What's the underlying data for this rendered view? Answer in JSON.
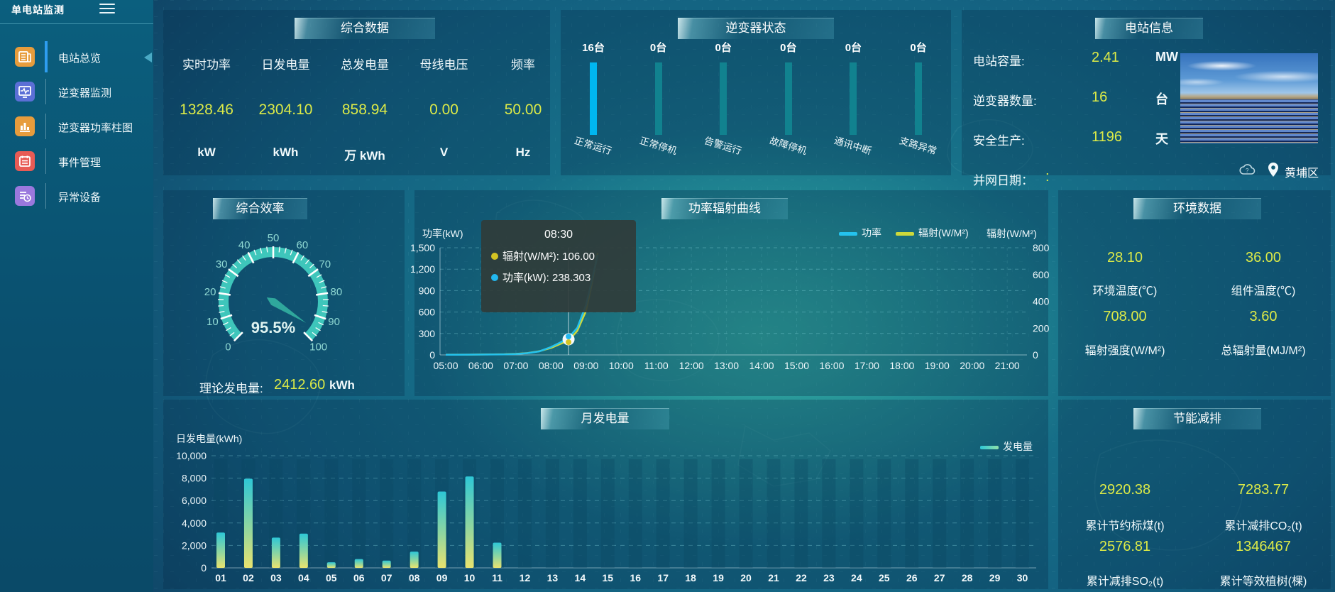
{
  "app": {
    "title": "单电站监测"
  },
  "sidebar": {
    "items": [
      {
        "label": "电站总览",
        "icon": "overview-icon",
        "color": "#e79c3c",
        "active": true
      },
      {
        "label": "逆变器监测",
        "icon": "inverter-monitor-icon",
        "color": "#5b6fd6",
        "active": false
      },
      {
        "label": "逆变器功率柱图",
        "icon": "power-bars-icon",
        "color": "#e79c3c",
        "active": false
      },
      {
        "label": "事件管理",
        "icon": "event-icon",
        "color": "#e85b55",
        "active": false
      },
      {
        "label": "异常设备",
        "icon": "abnormal-device-icon",
        "color": "#9a78dd",
        "active": false
      }
    ]
  },
  "summary": {
    "title": "综合数据",
    "metrics": [
      {
        "label": "实时功率",
        "value": "1328.46",
        "unit": "kW"
      },
      {
        "label": "日发电量",
        "value": "2304.10",
        "unit": "kWh"
      },
      {
        "label": "总发电量",
        "value": "858.94",
        "unit": "万 kWh"
      },
      {
        "label": "母线电压",
        "value": "0.00",
        "unit": "V"
      },
      {
        "label": "频率",
        "value": "50.00",
        "unit": "Hz"
      }
    ]
  },
  "inverter": {
    "title": "逆变器状态",
    "bars": [
      {
        "count": "16台",
        "label": "正常运行",
        "highlight": true
      },
      {
        "count": "0台",
        "label": "正常停机",
        "highlight": false
      },
      {
        "count": "0台",
        "label": "告警运行",
        "highlight": false
      },
      {
        "count": "0台",
        "label": "故障停机",
        "highlight": false
      },
      {
        "count": "0台",
        "label": "通讯中断",
        "highlight": false
      },
      {
        "count": "0台",
        "label": "支路异常",
        "highlight": false
      }
    ],
    "highlight_color": "#00b6f0",
    "normal_color": "#11828f"
  },
  "station": {
    "title": "电站信息",
    "rows": [
      {
        "label": "电站容量:",
        "value": "2.41",
        "unit": "MW"
      },
      {
        "label": "逆变器数量:",
        "value": "16",
        "unit": "台"
      },
      {
        "label": "安全生产:",
        "value": "1196",
        "unit": "天"
      },
      {
        "label": "并网日期：",
        "value": ":",
        "unit": ""
      }
    ],
    "location": "黄埔区"
  },
  "efficiency": {
    "title": "综合效率",
    "gauge": {
      "value": 95.5,
      "display": "95.5%",
      "min": 0,
      "max": 100
    },
    "theory": {
      "label": "理论发电量:",
      "value": "2412.60",
      "unit": "kWh"
    }
  },
  "power_curve": {
    "title": "功率辐射曲线",
    "ylabel_left": "功率(kW)",
    "ylabel_right": "辐射(W/M²)",
    "legend": [
      {
        "name": "功率",
        "color": "#24c2ee"
      },
      {
        "name": "辐射(W/M²)",
        "color": "#cdd93b"
      }
    ],
    "tooltip": {
      "time": "08:30",
      "rows": [
        {
          "color": "#d4c423",
          "text": "辐射(W/M²): 106.00"
        },
        {
          "color": "#22b8f0",
          "text": "功率(kW): 238.303"
        }
      ]
    },
    "chart_data": {
      "type": "line",
      "x_hours": [
        5,
        5.33,
        5.67,
        6,
        6.33,
        6.67,
        7,
        7.33,
        7.67,
        8,
        8.25,
        8.5,
        8.75,
        9,
        9.17,
        9.33
      ],
      "series": [
        {
          "name": "功率",
          "axis": "left",
          "values": [
            3,
            3,
            4,
            5,
            6,
            8,
            12,
            25,
            50,
            110,
            170,
            238.3,
            380,
            700,
            1050,
            1400
          ]
        },
        {
          "name": "辐射(W/M²)",
          "axis": "right",
          "values": [
            2,
            2,
            2,
            3,
            4,
            5,
            8,
            14,
            28,
            52,
            80,
            106,
            180,
            330,
            540,
            760
          ]
        }
      ],
      "marker": {
        "x_hour": 8.5,
        "power": 238.3,
        "radiation": 106
      },
      "ylim_left": [
        0,
        1500
      ],
      "yticks_left": [
        "0",
        "300",
        "600",
        "900",
        "1,200",
        "1,500"
      ],
      "ylim_right": [
        0,
        800
      ],
      "yticks_right": [
        "800",
        "600",
        "400",
        "200",
        "0"
      ],
      "x_labels": [
        "05:00",
        "06:00",
        "07:00",
        "08:00",
        "09:00",
        "10:00",
        "11:00",
        "12:00",
        "13:00",
        "14:00",
        "15:00",
        "16:00",
        "17:00",
        "18:00",
        "19:00",
        "20:00",
        "21:00"
      ]
    }
  },
  "environment": {
    "title": "环境数据",
    "items": [
      {
        "value": "28.10",
        "label": "环境温度(℃)"
      },
      {
        "value": "36.00",
        "label": "组件温度(℃)"
      },
      {
        "value": "708.00",
        "label": "辐射强度(W/M²)"
      },
      {
        "value": "3.60",
        "label": "总辐射量(MJ/M²)"
      }
    ]
  },
  "monthly": {
    "title": "月发电量",
    "ylabel": "日发电量(kWh)",
    "legend": "发电量",
    "chart_data": {
      "type": "bar",
      "categories": [
        "01",
        "02",
        "03",
        "04",
        "05",
        "06",
        "07",
        "08",
        "09",
        "10",
        "11",
        "12",
        "13",
        "14",
        "15",
        "16",
        "17",
        "18",
        "19",
        "20",
        "21",
        "22",
        "23",
        "24",
        "25",
        "26",
        "27",
        "28",
        "29",
        "30"
      ],
      "values": [
        3150,
        7950,
        2700,
        3050,
        500,
        780,
        650,
        1450,
        6800,
        8150,
        2250,
        0,
        0,
        0,
        0,
        0,
        0,
        0,
        0,
        0,
        0,
        0,
        0,
        0,
        0,
        0,
        0,
        0,
        0,
        0
      ],
      "ylim": [
        0,
        10000
      ],
      "yticks": [
        "0",
        "2,000",
        "4,000",
        "6,000",
        "8,000",
        "10,000"
      ]
    }
  },
  "saving": {
    "title": "节能减排",
    "items": [
      {
        "value": "2920.38",
        "label": "累计节约标煤(t)"
      },
      {
        "value": "7283.77",
        "label": "累计减排CO₂(t)"
      },
      {
        "value": "2576.81",
        "label": "累计减排SO₂(t)"
      },
      {
        "value": "1346467",
        "label": "累计等效植树(棵)"
      }
    ]
  }
}
